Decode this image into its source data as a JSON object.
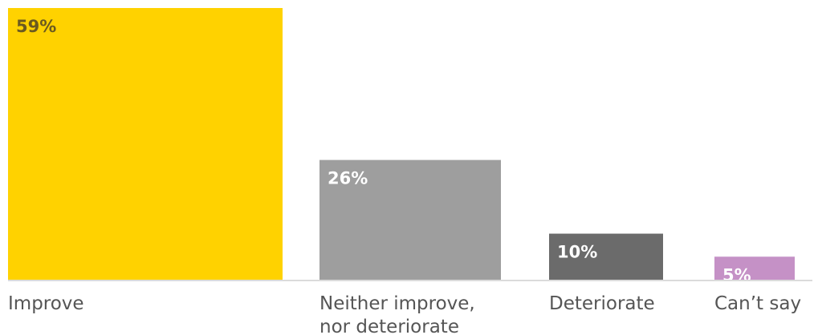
{
  "chart_data": {
    "type": "bar",
    "categories": [
      [
        "Improve"
      ],
      [
        "Neither improve,",
        "nor deteriorate"
      ],
      [
        "Deteriorate"
      ],
      [
        "Can’t say"
      ]
    ],
    "values": [
      59,
      26,
      10,
      5
    ],
    "value_labels": [
      "59%",
      "26%",
      "10%",
      "5%"
    ],
    "ylim": [
      0,
      59
    ],
    "colors": [
      "#FFD200",
      "#9E9E9E",
      "#6B6B6B",
      "#C591C6"
    ],
    "label_colors": [
      "#6B5A20",
      "#FFFFFF",
      "#FFFFFF",
      "#FFFFFF"
    ],
    "grid": false,
    "legend": "none"
  }
}
